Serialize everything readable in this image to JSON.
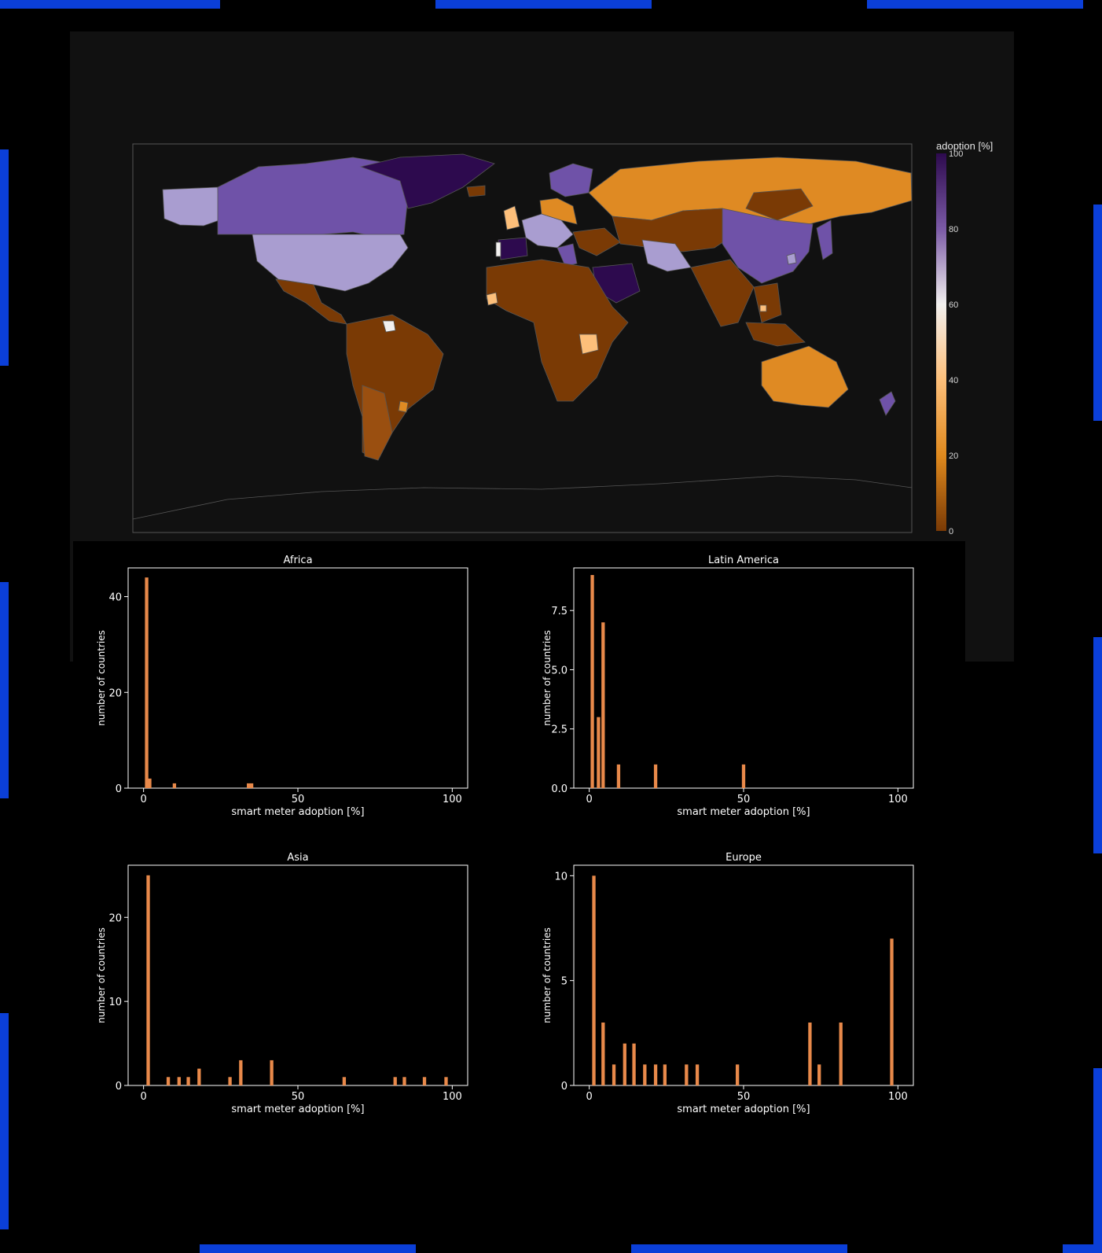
{
  "map": {
    "colorbar_title": "adoption [%]",
    "colorbar_ticks": [
      "100",
      "80",
      "60",
      "40",
      "20",
      "0"
    ],
    "colorscale": [
      "#2d0a4e",
      "#7b5aa6",
      "#b8aed4",
      "#f2f0ef",
      "#fdbf7a",
      "#e08a1e",
      "#7a3a05"
    ],
    "colors": {
      "low": "#7a3a05",
      "mid_low": "#df8a23",
      "mid": "#fdbf7a",
      "high_mid": "#a99dd0",
      "high": "#6f52a8",
      "top": "#2d0a4e",
      "border": "#555555",
      "background": "#111111"
    }
  },
  "chart_data": [
    {
      "type": "bar",
      "title": "Africa",
      "xlabel": "smart meter adoption [%]",
      "ylabel": "number of countries",
      "xlim": [
        -5,
        105
      ],
      "ylim": [
        0,
        46
      ],
      "xticks": [
        "0",
        "50",
        "100"
      ],
      "yticks": [
        "0",
        "20",
        "40"
      ],
      "ytick_values": [
        0,
        20,
        40
      ],
      "bar_color": "#e8894a",
      "bars": [
        {
          "x": 1,
          "y": 44
        },
        {
          "x": 2,
          "y": 2
        },
        {
          "x": 10,
          "y": 1
        },
        {
          "x": 34,
          "y": 1
        },
        {
          "x": 35,
          "y": 1
        }
      ]
    },
    {
      "type": "bar",
      "title": "Latin America",
      "xlabel": "smart meter adoption [%]",
      "ylabel": "number of countries",
      "xlim": [
        -5,
        105
      ],
      "ylim": [
        0,
        9.3
      ],
      "xticks": [
        "0",
        "50",
        "100"
      ],
      "yticks": [
        "0.0",
        "2.5",
        "5.0",
        "7.5"
      ],
      "ytick_values": [
        0,
        2.5,
        5,
        7.5
      ],
      "bar_color": "#e8894a",
      "bars": [
        {
          "x": 1,
          "y": 9
        },
        {
          "x": 3,
          "y": 3
        },
        {
          "x": 4.5,
          "y": 7
        },
        {
          "x": 9.5,
          "y": 1
        },
        {
          "x": 21.5,
          "y": 1
        },
        {
          "x": 50,
          "y": 1
        }
      ]
    },
    {
      "type": "bar",
      "title": "Asia",
      "xlabel": "smart meter adoption [%]",
      "ylabel": "number of countries",
      "xlim": [
        -5,
        105
      ],
      "ylim": [
        0,
        26.2
      ],
      "xticks": [
        "0",
        "50",
        "100"
      ],
      "yticks": [
        "0",
        "10",
        "20"
      ],
      "ytick_values": [
        0,
        10,
        20
      ],
      "bar_color": "#e8894a",
      "bars": [
        {
          "x": 1.5,
          "y": 25
        },
        {
          "x": 8,
          "y": 1
        },
        {
          "x": 11.5,
          "y": 1
        },
        {
          "x": 14.5,
          "y": 1
        },
        {
          "x": 18,
          "y": 2
        },
        {
          "x": 28,
          "y": 1
        },
        {
          "x": 31.5,
          "y": 3
        },
        {
          "x": 41.5,
          "y": 3
        },
        {
          "x": 65,
          "y": 1
        },
        {
          "x": 81.5,
          "y": 1
        },
        {
          "x": 84.5,
          "y": 1
        },
        {
          "x": 91,
          "y": 1
        },
        {
          "x": 98,
          "y": 1
        }
      ]
    },
    {
      "type": "bar",
      "title": "Europe",
      "xlabel": "smart meter adoption [%]",
      "ylabel": "number of countries",
      "xlim": [
        -5,
        105
      ],
      "ylim": [
        0,
        10.5
      ],
      "xticks": [
        "0",
        "50",
        "100"
      ],
      "yticks": [
        "0",
        "5",
        "10"
      ],
      "ytick_values": [
        0,
        5,
        10
      ],
      "bar_color": "#e8894a",
      "bars": [
        {
          "x": 1.5,
          "y": 10
        },
        {
          "x": 4.5,
          "y": 3
        },
        {
          "x": 8,
          "y": 1
        },
        {
          "x": 11.5,
          "y": 2
        },
        {
          "x": 14.5,
          "y": 2
        },
        {
          "x": 18,
          "y": 1
        },
        {
          "x": 21.5,
          "y": 1
        },
        {
          "x": 24.5,
          "y": 1
        },
        {
          "x": 31.5,
          "y": 1
        },
        {
          "x": 35,
          "y": 1
        },
        {
          "x": 48,
          "y": 1
        },
        {
          "x": 71.5,
          "y": 3
        },
        {
          "x": 74.5,
          "y": 1
        },
        {
          "x": 81.5,
          "y": 3
        },
        {
          "x": 98,
          "y": 7
        }
      ]
    }
  ]
}
